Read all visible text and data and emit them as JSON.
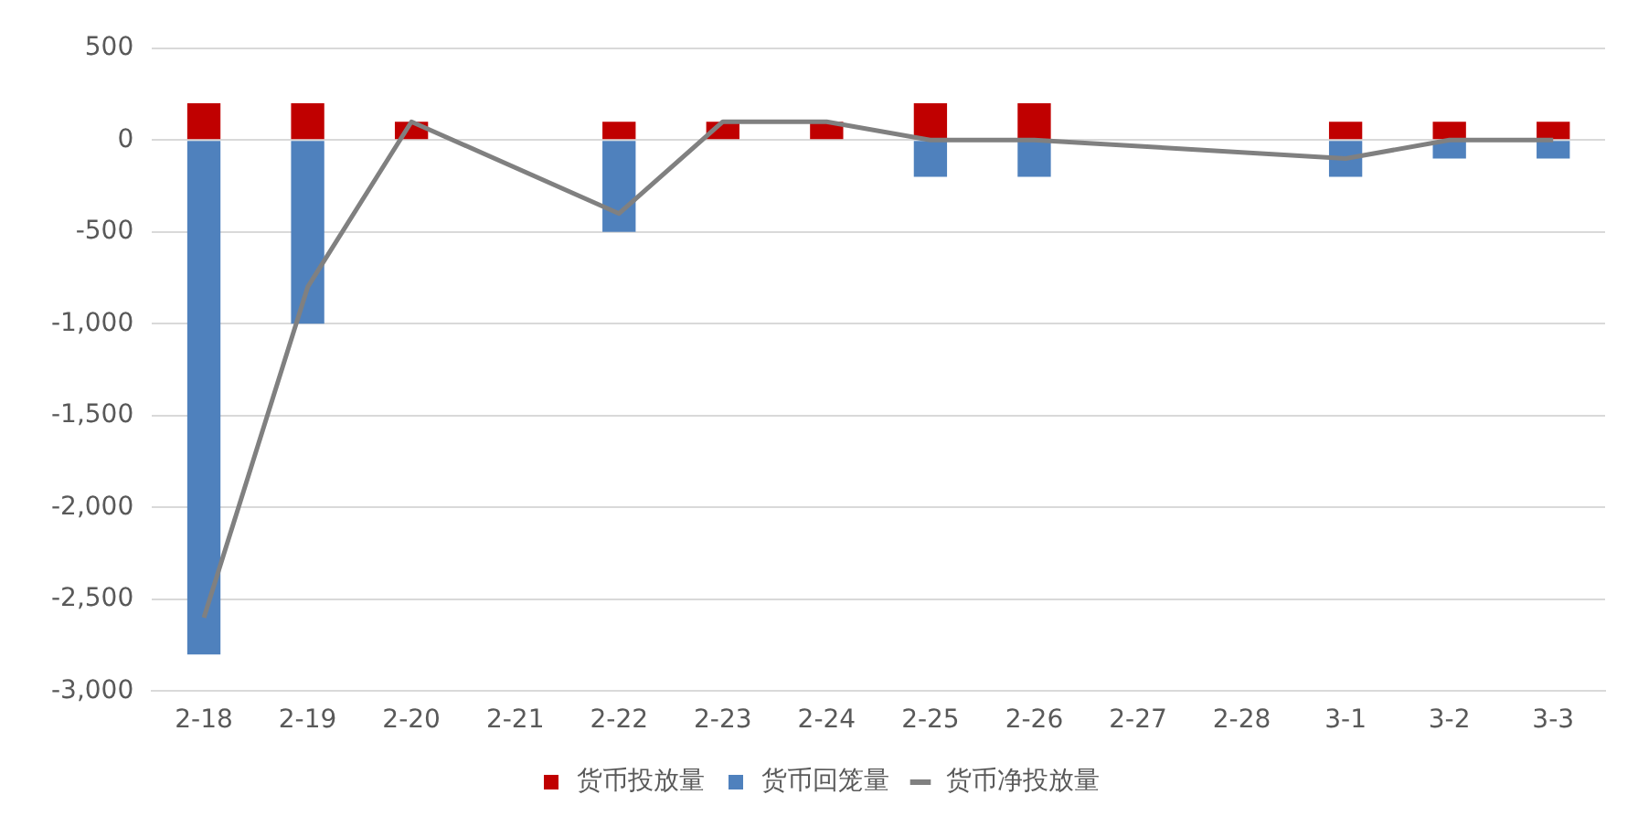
{
  "chart_data": {
    "type": "bar",
    "stacked": true,
    "categories": [
      "2-18",
      "2-19",
      "2-20",
      "2-21",
      "2-22",
      "2-23",
      "2-24",
      "2-25",
      "2-26",
      "2-27",
      "2-28",
      "3-1",
      "3-2",
      "3-3"
    ],
    "series": [
      {
        "name": "货币投放量",
        "color": "#c00000",
        "values": [
          200,
          200,
          100,
          null,
          100,
          100,
          100,
          200,
          200,
          null,
          null,
          100,
          100,
          100
        ]
      },
      {
        "name": "货币回笼量",
        "color": "#4f81bd",
        "values": [
          -2800,
          -1000,
          null,
          null,
          -500,
          null,
          null,
          -200,
          -200,
          null,
          null,
          -200,
          -100,
          -100
        ]
      },
      {
        "name": "货币净投放量",
        "type": "line",
        "color": "#808080",
        "values": [
          -2600,
          -800,
          100,
          null,
          -400,
          100,
          100,
          0,
          0,
          null,
          null,
          -100,
          0,
          0
        ]
      }
    ],
    "ylim": [
      -3000,
      500
    ],
    "yticks": [
      {
        "value": -3000,
        "label": "-3,000"
      },
      {
        "value": -2500,
        "label": "-2,500"
      },
      {
        "value": -2000,
        "label": "-2,000"
      },
      {
        "value": -1500,
        "label": "-1,500"
      },
      {
        "value": -1000,
        "label": "-1,000"
      },
      -500,
      0,
      500
    ],
    "grid": "y",
    "legend": "bottom",
    "marker": "none",
    "line_style": "solid"
  }
}
